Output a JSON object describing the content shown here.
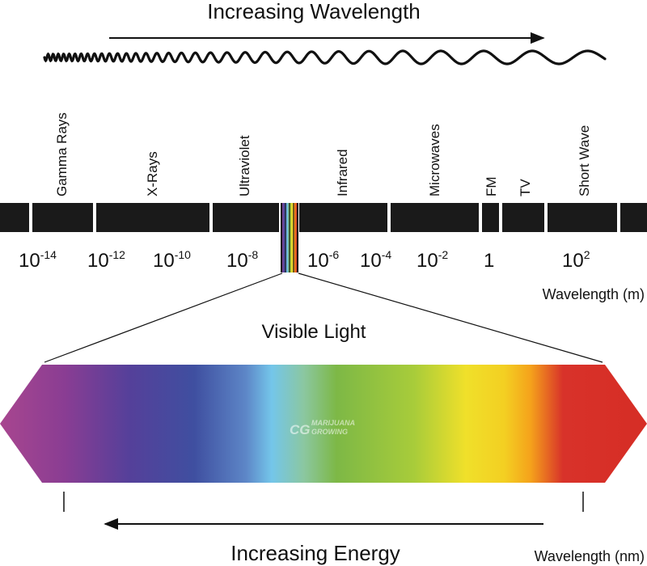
{
  "header": {
    "title": "Increasing Wavelength"
  },
  "spectrum": {
    "bands": [
      "Gamma Rays",
      "X-Rays",
      "Ultraviolet",
      "Infrared",
      "Microwaves",
      "FM",
      "TV",
      "Short Wave"
    ],
    "wavelength_ticks": [
      {
        "base": "10",
        "exp": "-14"
      },
      {
        "base": "10",
        "exp": "-12"
      },
      {
        "base": "10",
        "exp": "-10"
      },
      {
        "base": "10",
        "exp": "-8"
      },
      {
        "base": "10",
        "exp": "-6"
      },
      {
        "base": "10",
        "exp": "-4"
      },
      {
        "base": "10",
        "exp": "-2"
      },
      {
        "base": "1",
        "exp": ""
      },
      {
        "base": "10",
        "exp": "2"
      }
    ],
    "unit_label": "Wavelength (m)"
  },
  "visible": {
    "title": "Visible Light",
    "watermark_logo": "CG",
    "watermark_text_1": "MARIJUANA",
    "watermark_text_2": "GROWING",
    "gradient_colors": [
      "#a8468f",
      "#5a3d98",
      "#3f4fa0",
      "#74c6ea",
      "#7db846",
      "#f0e02a",
      "#f5a21b",
      "#d62d25"
    ],
    "unit_label": "Wavelength (nm)"
  },
  "footer": {
    "title": "Increasing Energy"
  },
  "colors": {
    "bar": "#1a1a1a",
    "ink": "#111111"
  }
}
